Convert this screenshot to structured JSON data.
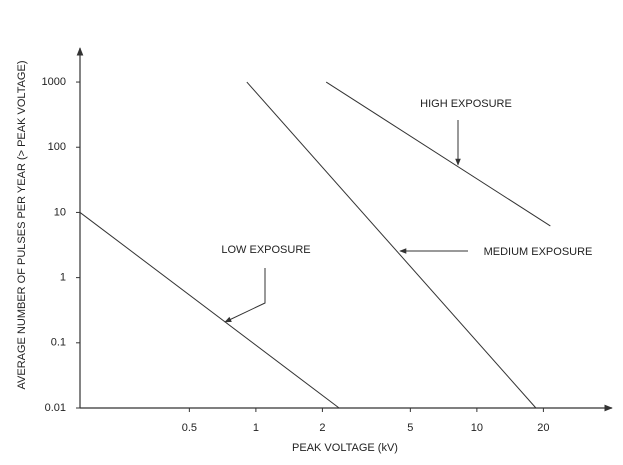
{
  "chart_data": {
    "type": "line",
    "x_label": "PEAK VOLTAGE (kV)",
    "y_label": "AVERAGE NUMBER OF PULSES PER YEAR (> PEAK VOLTAGE)",
    "xscale": "log",
    "yscale": "log",
    "xlim": [
      0.16,
      38
    ],
    "ylim": [
      0.01,
      3700
    ],
    "xticks": [
      0.5,
      1,
      2,
      5,
      10,
      20
    ],
    "yticks": [
      0.01,
      0.1,
      1,
      10,
      100,
      1000
    ],
    "series": [
      {
        "name": "LOW EXPOSURE",
        "color": "#333333",
        "x": [
          0.16,
          2.38
        ],
        "values": [
          10,
          0.01
        ]
      },
      {
        "name": "MEDIUM EXPOSURE",
        "color": "#333333",
        "x": [
          0.91,
          18.5
        ],
        "values": [
          1000,
          0.01
        ]
      },
      {
        "name": "HIGH EXPOSURE",
        "color": "#333333",
        "x": [
          2.08,
          21.5
        ],
        "values": [
          1000,
          6.2
        ]
      }
    ]
  }
}
